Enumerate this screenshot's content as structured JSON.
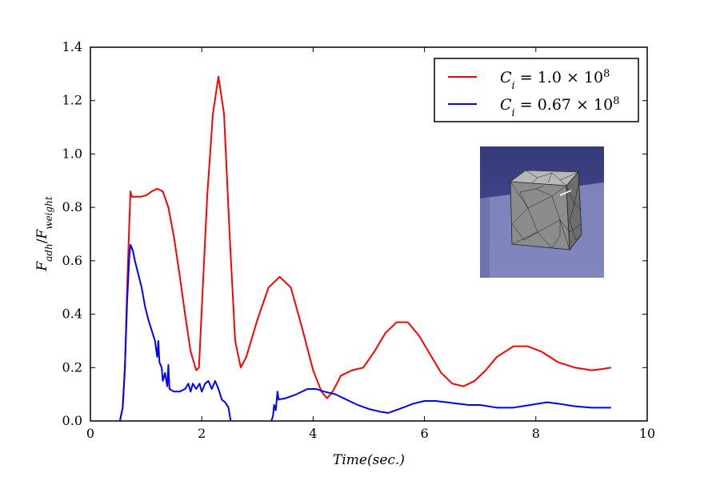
{
  "chart_data": {
    "type": "line",
    "title": "",
    "xlabel": "Time(sec.)",
    "ylabel": "F_adh/F_weight",
    "xlim": [
      0,
      10
    ],
    "ylim": [
      0,
      1.4
    ],
    "x_ticks": [
      "0",
      "2",
      "4",
      "6",
      "8",
      "10"
    ],
    "y_ticks": [
      "0.0",
      "0.2",
      "0.4",
      "0.6",
      "0.8",
      "1.0",
      "1.2",
      "1.4"
    ],
    "grid": false,
    "legend_position": "top-right",
    "series": [
      {
        "name": "C_i = 1.0 × 10^8",
        "color": "#ff0000",
        "points": [
          [
            0.53,
            0.0
          ],
          [
            0.58,
            0.05
          ],
          [
            0.62,
            0.2
          ],
          [
            0.66,
            0.5
          ],
          [
            0.7,
            0.75
          ],
          [
            0.72,
            0.86
          ],
          [
            0.74,
            0.84
          ],
          [
            0.8,
            0.84
          ],
          [
            0.9,
            0.84
          ],
          [
            1.0,
            0.845
          ],
          [
            1.1,
            0.86
          ],
          [
            1.2,
            0.87
          ],
          [
            1.3,
            0.86
          ],
          [
            1.4,
            0.8
          ],
          [
            1.5,
            0.69
          ],
          [
            1.6,
            0.55
          ],
          [
            1.7,
            0.4
          ],
          [
            1.8,
            0.26
          ],
          [
            1.9,
            0.19
          ],
          [
            1.95,
            0.2
          ],
          [
            2.0,
            0.42
          ],
          [
            2.1,
            0.85
          ],
          [
            2.2,
            1.15
          ],
          [
            2.3,
            1.29
          ],
          [
            2.4,
            1.15
          ],
          [
            2.5,
            0.7
          ],
          [
            2.6,
            0.3
          ],
          [
            2.7,
            0.2
          ],
          [
            2.8,
            0.24
          ],
          [
            3.0,
            0.38
          ],
          [
            3.2,
            0.5
          ],
          [
            3.4,
            0.54
          ],
          [
            3.6,
            0.5
          ],
          [
            3.8,
            0.35
          ],
          [
            4.0,
            0.19
          ],
          [
            4.15,
            0.11
          ],
          [
            4.25,
            0.085
          ],
          [
            4.35,
            0.11
          ],
          [
            4.5,
            0.17
          ],
          [
            4.7,
            0.19
          ],
          [
            4.9,
            0.2
          ],
          [
            5.1,
            0.26
          ],
          [
            5.3,
            0.33
          ],
          [
            5.5,
            0.37
          ],
          [
            5.7,
            0.37
          ],
          [
            5.9,
            0.32
          ],
          [
            6.1,
            0.25
          ],
          [
            6.3,
            0.18
          ],
          [
            6.5,
            0.14
          ],
          [
            6.7,
            0.13
          ],
          [
            6.9,
            0.15
          ],
          [
            7.1,
            0.19
          ],
          [
            7.3,
            0.24
          ],
          [
            7.6,
            0.28
          ],
          [
            7.85,
            0.28
          ],
          [
            8.1,
            0.26
          ],
          [
            8.4,
            0.22
          ],
          [
            8.7,
            0.2
          ],
          [
            9.0,
            0.19
          ],
          [
            9.2,
            0.195
          ],
          [
            9.35,
            0.2
          ]
        ]
      },
      {
        "name": "C_i = 0.67 × 10^8",
        "color": "#0000ff",
        "points": [
          [
            0.53,
            0.0
          ],
          [
            0.58,
            0.05
          ],
          [
            0.62,
            0.2
          ],
          [
            0.66,
            0.45
          ],
          [
            0.7,
            0.62
          ],
          [
            0.72,
            0.66
          ],
          [
            0.76,
            0.64
          ],
          [
            0.8,
            0.6
          ],
          [
            0.86,
            0.55
          ],
          [
            0.92,
            0.5
          ],
          [
            0.98,
            0.43
          ],
          [
            1.04,
            0.38
          ],
          [
            1.1,
            0.34
          ],
          [
            1.16,
            0.3
          ],
          [
            1.2,
            0.24
          ],
          [
            1.22,
            0.3
          ],
          [
            1.24,
            0.22
          ],
          [
            1.28,
            0.2
          ],
          [
            1.3,
            0.15
          ],
          [
            1.34,
            0.18
          ],
          [
            1.38,
            0.13
          ],
          [
            1.4,
            0.21
          ],
          [
            1.42,
            0.12
          ],
          [
            1.5,
            0.11
          ],
          [
            1.6,
            0.11
          ],
          [
            1.7,
            0.12
          ],
          [
            1.76,
            0.14
          ],
          [
            1.8,
            0.11
          ],
          [
            1.84,
            0.14
          ],
          [
            1.9,
            0.12
          ],
          [
            1.96,
            0.14
          ],
          [
            2.0,
            0.11
          ],
          [
            2.06,
            0.14
          ],
          [
            2.12,
            0.15
          ],
          [
            2.18,
            0.12
          ],
          [
            2.24,
            0.15
          ],
          [
            2.3,
            0.12
          ],
          [
            2.36,
            0.08
          ],
          [
            2.42,
            0.07
          ],
          [
            2.48,
            0.05
          ],
          [
            2.52,
            0.0
          ],
          null,
          [
            3.25,
            0.0
          ],
          [
            3.28,
            0.02
          ],
          [
            3.3,
            0.06
          ],
          [
            3.33,
            0.04
          ],
          [
            3.36,
            0.11
          ],
          [
            3.38,
            0.08
          ],
          [
            3.5,
            0.085
          ],
          [
            3.7,
            0.1
          ],
          [
            3.9,
            0.12
          ],
          [
            4.05,
            0.12
          ],
          [
            4.2,
            0.11
          ],
          [
            4.4,
            0.1
          ],
          [
            4.6,
            0.08
          ],
          [
            4.8,
            0.06
          ],
          [
            5.0,
            0.045
          ],
          [
            5.2,
            0.035
          ],
          [
            5.35,
            0.03
          ],
          [
            5.55,
            0.045
          ],
          [
            5.8,
            0.065
          ],
          [
            6.0,
            0.075
          ],
          [
            6.2,
            0.075
          ],
          [
            6.4,
            0.07
          ],
          [
            6.6,
            0.065
          ],
          [
            6.8,
            0.06
          ],
          [
            7.0,
            0.06
          ],
          [
            7.3,
            0.05
          ],
          [
            7.6,
            0.05
          ],
          [
            7.9,
            0.06
          ],
          [
            8.2,
            0.07
          ],
          [
            8.4,
            0.065
          ],
          [
            8.7,
            0.055
          ],
          [
            9.0,
            0.05
          ],
          [
            9.35,
            0.05
          ]
        ]
      }
    ]
  },
  "legend": {
    "entries": [
      {
        "lhs": "C",
        "sub": "i",
        "rhs": " = 1.0 × 10",
        "sup": "8",
        "color": "#ff0000"
      },
      {
        "lhs": "C",
        "sub": "i",
        "rhs": " = 0.67 × 10",
        "sup": "8",
        "color": "#0000ff"
      }
    ]
  },
  "axis_labels": {
    "x": "Time(sec.)",
    "y_main_1": "F",
    "y_sub_1": "adh",
    "y_slash": "/",
    "y_main_2": "F",
    "y_sub_2": "weight"
  },
  "inset": {
    "description_icon": "meshed-cube-render"
  }
}
